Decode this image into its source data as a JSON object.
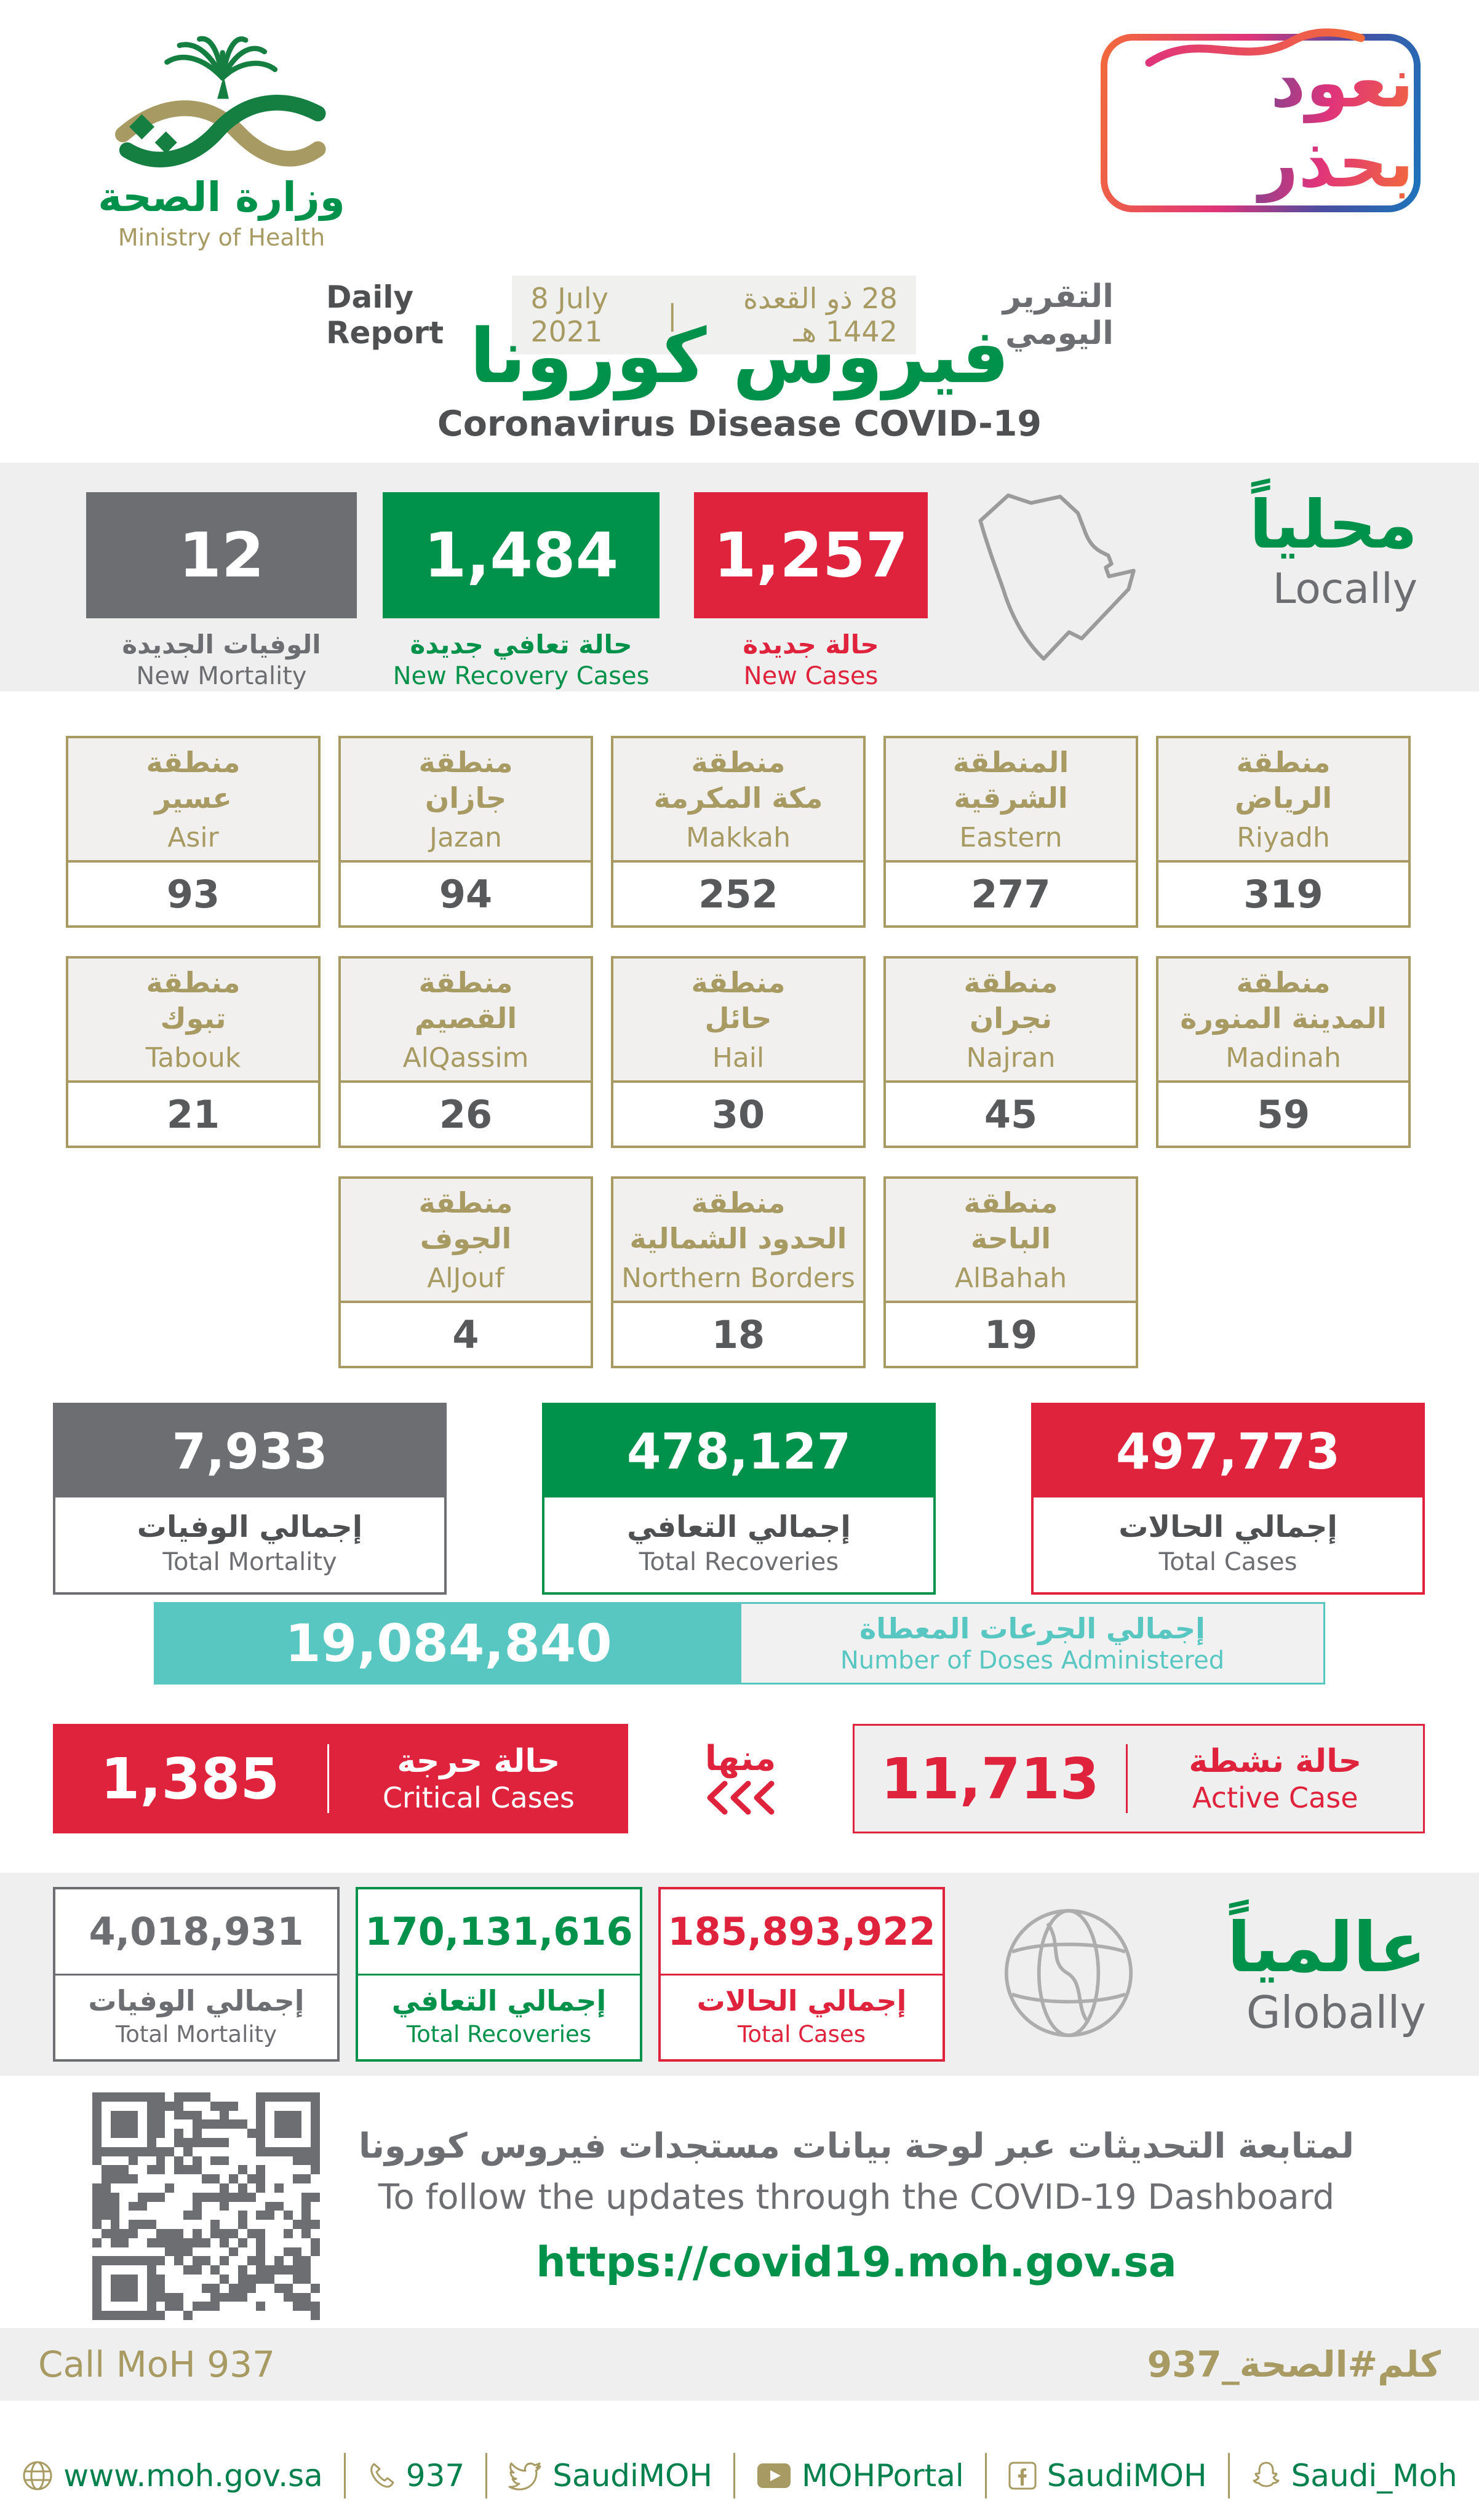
{
  "colors": {
    "green": "#00914A",
    "gold": "#A79B63",
    "red": "#E0233C",
    "dark_gray": "#58595B",
    "box_gray": "#6D6E71",
    "teal": "#59C7C1",
    "band_gray": "#EFEFEF"
  },
  "header": {
    "logo": {
      "ar": "وزارة الصحة",
      "en": "Ministry of Health"
    },
    "badge": {
      "text": "نعود بحذر"
    },
    "report": {
      "en": "Daily Report",
      "date": "8 July 2021",
      "sep": "|",
      "hijri": "28 ذو القعدة 1442 هـ",
      "ar": "التقرير اليومي"
    },
    "title_ar": "فيروس كورونا",
    "title_en": "Coronavirus Disease COVID-19"
  },
  "locally": {
    "heading_ar": "محلياً",
    "heading_en": "Locally",
    "new_mortality": {
      "value": "12",
      "ar": "الوفيات الجديدة",
      "en": "New Mortality"
    },
    "new_recovery": {
      "value": "1,484",
      "ar": "حالة تعافي جديدة",
      "en": "New Recovery Cases"
    },
    "new_cases": {
      "value": "1,257",
      "ar": "حالة جديدة",
      "en": "New Cases"
    }
  },
  "regions": {
    "cards": [
      {
        "ar1": "منطقة",
        "ar2": "عسير",
        "en": "Asir",
        "value": "93"
      },
      {
        "ar1": "منطقة",
        "ar2": "جازان",
        "en": "Jazan",
        "value": "94"
      },
      {
        "ar1": "منطقة",
        "ar2": "مكة المكرمة",
        "en": "Makkah",
        "value": "252"
      },
      {
        "ar1": "المنطقة",
        "ar2": "الشرقية",
        "en": "Eastern",
        "value": "277"
      },
      {
        "ar1": "منطقة",
        "ar2": "الرياض",
        "en": "Riyadh",
        "value": "319"
      },
      {
        "ar1": "منطقة",
        "ar2": "تبوك",
        "en": "Tabouk",
        "value": "21"
      },
      {
        "ar1": "منطقة",
        "ar2": "القصيم",
        "en": "AlQassim",
        "value": "26"
      },
      {
        "ar1": "منطقة",
        "ar2": "حائل",
        "en": "Hail",
        "value": "30"
      },
      {
        "ar1": "منطقة",
        "ar2": "نجران",
        "en": "Najran",
        "value": "45"
      },
      {
        "ar1": "منطقة",
        "ar2": "المدينة المنورة",
        "en": "Madinah",
        "value": "59"
      },
      {
        "ar1": "منطقة",
        "ar2": "الجوف",
        "en": "AlJouf",
        "value": "4"
      },
      {
        "ar1": "منطقة",
        "ar2": "الحدود الشمالية",
        "en": "Northern Borders",
        "value": "18"
      },
      {
        "ar1": "منطقة",
        "ar2": "الباحة",
        "en": "AlBahah",
        "value": "19"
      }
    ]
  },
  "totals": {
    "mortality": {
      "value": "7,933",
      "ar": "إجمالي الوفيات",
      "en": "Total Mortality"
    },
    "recoveries": {
      "value": "478,127",
      "ar": "إجمالي التعافي",
      "en": "Total Recoveries"
    },
    "cases": {
      "value": "497,773",
      "ar": "إجمالي الحالات",
      "en": "Total Cases"
    }
  },
  "doses": {
    "value": "19,084,840",
    "ar": "إجمالي الجرعات المعطاة",
    "en": "Number of Doses Administered"
  },
  "critical": {
    "value": "1,385",
    "ar": "حالة حرجة",
    "en": "Critical Cases"
  },
  "minha": "منها",
  "active": {
    "value": "11,713",
    "ar": "حالة نشطة",
    "en": "Active Case"
  },
  "globally": {
    "heading_ar": "عالمياً",
    "heading_en": "Globally",
    "mortality": {
      "value": "4,018,931",
      "ar": "إجمالي الوفيات",
      "en": "Total Mortality"
    },
    "recoveries": {
      "value": "170,131,616",
      "ar": "إجمالي التعافي",
      "en": "Total Recoveries"
    },
    "cases": {
      "value": "185,893,922",
      "ar": "إجمالي الحالات",
      "en": "Total Cases"
    }
  },
  "dashboard": {
    "ar": "لمتابعة التحديثات عبر لوحة بيانات مستجدات فيروس كورونا",
    "en": "To follow the updates through the COVID-19 Dashboard",
    "url": "https://covid19.moh.gov.sa"
  },
  "footer": {
    "call": "Call MoH 937",
    "hashtag": "كلم#الصحة_937"
  },
  "social": {
    "items": [
      {
        "icon": "globe-icon",
        "label": "www.moh.gov.sa"
      },
      {
        "icon": "phone-icon",
        "label": "937"
      },
      {
        "icon": "twitter-icon",
        "label": "SaudiMOH"
      },
      {
        "icon": "youtube-icon",
        "label": "MOHPortal"
      },
      {
        "icon": "facebook-icon",
        "label": "SaudiMOH"
      },
      {
        "icon": "snapchat-icon",
        "label": "Saudi_Moh"
      }
    ]
  }
}
